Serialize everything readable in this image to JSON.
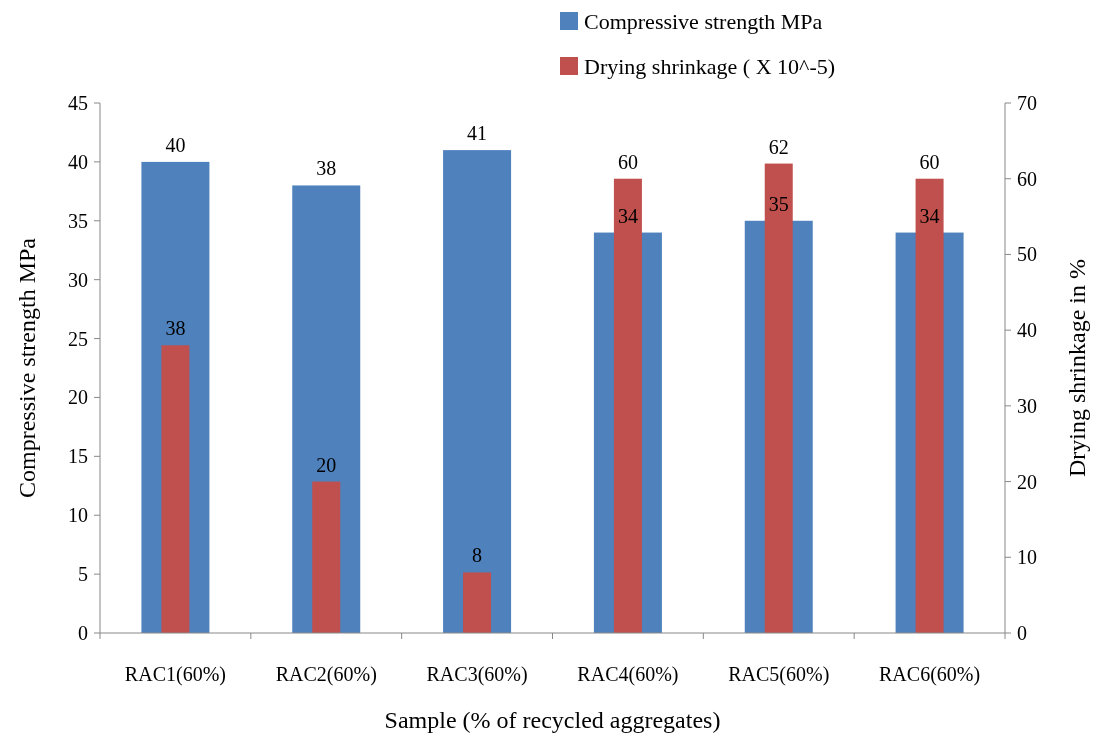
{
  "chart_data": {
    "type": "bar",
    "xlabel": "Sample (% of recycled aggregates)",
    "ylabel": "Compressive strength MPa",
    "y2label": "Drying shrinkage in %",
    "categories": [
      "RAC1(60%)",
      "RAC2(60%)",
      "RAC3(60%)",
      "RAC4(60%)",
      "RAC5(60%)",
      "RAC6(60%)"
    ],
    "series": [
      {
        "name": "Compressive strength MPa",
        "color": "#4f81bd",
        "values": [
          40,
          38,
          41,
          34,
          35,
          34
        ]
      },
      {
        "name": "Drying shrinkage (  X 10^-5)",
        "color": "#c0504d",
        "axis": "y2",
        "values": [
          38,
          20,
          8,
          60,
          62,
          60
        ]
      }
    ],
    "ylim": [
      0,
      45
    ],
    "yticks": [
      0,
      5,
      10,
      15,
      20,
      25,
      30,
      35,
      40,
      45
    ],
    "y2lim": [
      0,
      70
    ],
    "y2ticks": [
      0,
      10,
      20,
      30,
      40,
      50,
      60,
      70
    ],
    "data_labels": true,
    "legend": "top right",
    "grid": false
  }
}
